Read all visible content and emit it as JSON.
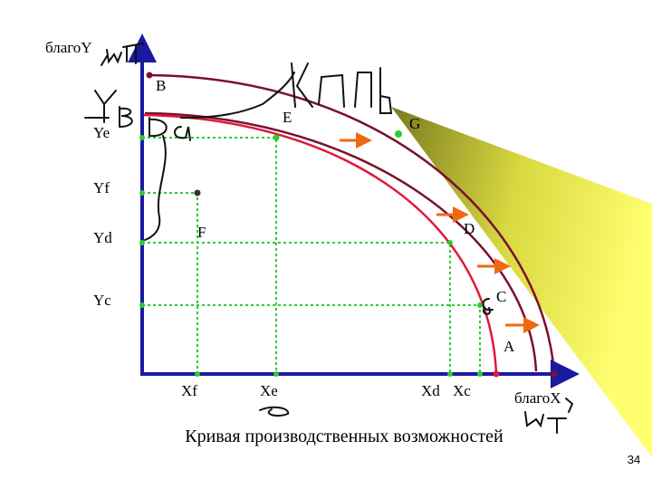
{
  "axis_labels": {
    "y": "благоY",
    "x": "благоX"
  },
  "points": {
    "B": "B",
    "E": "E",
    "G": "G",
    "F": "F",
    "D": "D",
    "C": "C",
    "A": "A"
  },
  "y_labels": {
    "Ye": "Ye",
    "Yf": "Yf",
    "Yd": "Yd",
    "Yc": "Yc"
  },
  "x_labels": {
    "Xf": "Xf",
    "Xe": "Xe",
    "Xd": "Xd",
    "Xc": "Xc"
  },
  "caption": "Кривая производственных возможностей",
  "page_number": "34"
}
